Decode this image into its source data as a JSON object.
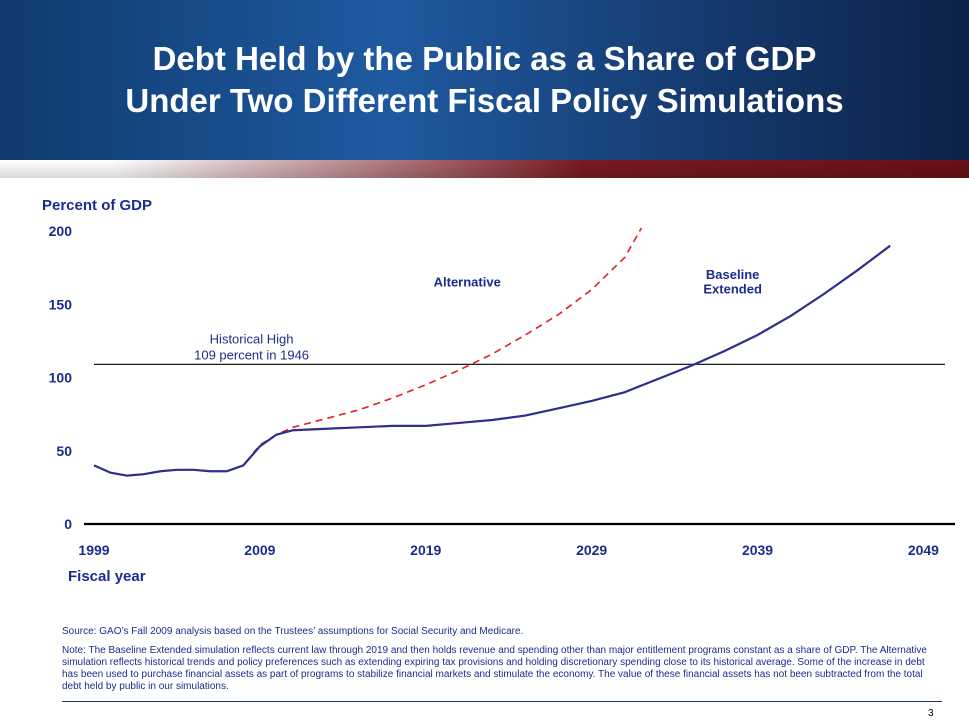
{
  "slide": {
    "title_line1": "Debt Held by the Public as a Share of GDP",
    "title_line2": "Under Two Different Fiscal Policy Simulations",
    "page_number": "3",
    "source": "Source:  GAO’s Fall 2009 analysis based on the Trustees’ assumptions for Social Security and Medicare.",
    "note": "Note: The Baseline Extended simulation reflects current law through 2019 and then holds revenue and spending other than major entitlement programs constant as a share of GDP. The Alternative simulation reflects historical trends and policy preferences such as extending expiring tax provisions and holding discretionary spending close to its historical average. Some of the increase in debt has been used to purchase financial assets as part of programs to stabilize financial markets and stimulate the economy. The value of these financial assets has not been subtracted from the total debt held by public in our simulations."
  },
  "chart_data": {
    "type": "line",
    "ylabel": "Percent of GDP",
    "xlabel": "Fiscal year",
    "xlim": [
      1999,
      2050
    ],
    "ylim": [
      0,
      200
    ],
    "x_ticks": [
      "1999",
      "2009",
      "2019",
      "2029",
      "2039",
      "2049"
    ],
    "y_ticks": [
      "0",
      "50",
      "100",
      "150",
      "200"
    ],
    "grid": false,
    "reference_line": {
      "y": 109,
      "label_line1": "Historical High",
      "label_line2": "109 percent in 1946"
    },
    "series": [
      {
        "name": "Alternative",
        "style": "dashed",
        "color": "#e31e24",
        "x": [
          1999,
          2000,
          2001,
          2002,
          2003,
          2004,
          2005,
          2006,
          2007,
          2008,
          2009,
          2010,
          2011,
          2013,
          2015,
          2017,
          2019,
          2021,
          2023,
          2025,
          2027,
          2029,
          2031,
          2032
        ],
        "values": [
          40,
          35,
          33,
          34,
          36,
          37,
          37,
          36,
          36,
          40,
          54,
          61,
          66,
          72,
          78,
          86,
          95,
          105,
          116,
          129,
          143,
          160,
          182,
          203
        ]
      },
      {
        "name": "Baseline Extended",
        "style": "solid",
        "color": "#2e2e8c",
        "x": [
          1999,
          2000,
          2001,
          2002,
          2003,
          2004,
          2005,
          2006,
          2007,
          2008,
          2009,
          2010,
          2011,
          2013,
          2015,
          2017,
          2019,
          2021,
          2023,
          2025,
          2027,
          2029,
          2031,
          2033,
          2035,
          2037,
          2039,
          2041,
          2043,
          2045,
          2047
        ],
        "values": [
          40,
          35,
          33,
          34,
          36,
          37,
          37,
          36,
          36,
          40,
          53,
          61,
          64,
          65,
          66,
          67,
          67,
          69,
          71,
          74,
          79,
          84,
          90,
          99,
          108,
          118,
          129,
          142,
          157,
          173,
          190
        ]
      }
    ]
  }
}
